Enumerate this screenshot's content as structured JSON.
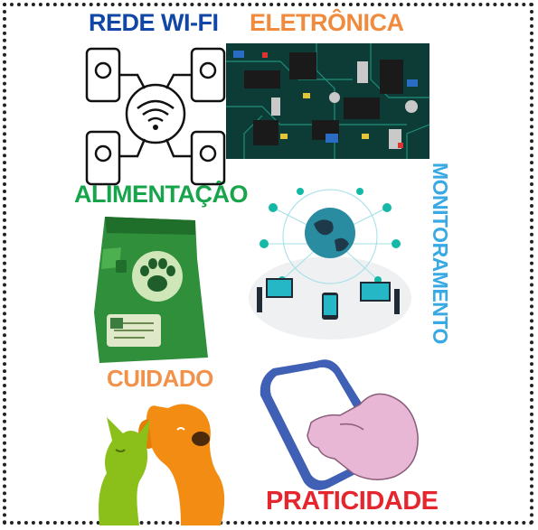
{
  "labels": {
    "wifi": "REDE WI-FI",
    "electronics": "ELETRÔNICA",
    "food": "ALIMENTAÇÃO",
    "monitoring": "MONITORAMENTO",
    "care": "CUIDADO",
    "practicality": "PRATICIDADE"
  },
  "colors": {
    "wifi": "#1046a6",
    "electronics": "#f08a3c",
    "food": "#16a54a",
    "monitoring": "#37a9e4",
    "care": "#f2914a",
    "practicality": "#e4262e"
  }
}
